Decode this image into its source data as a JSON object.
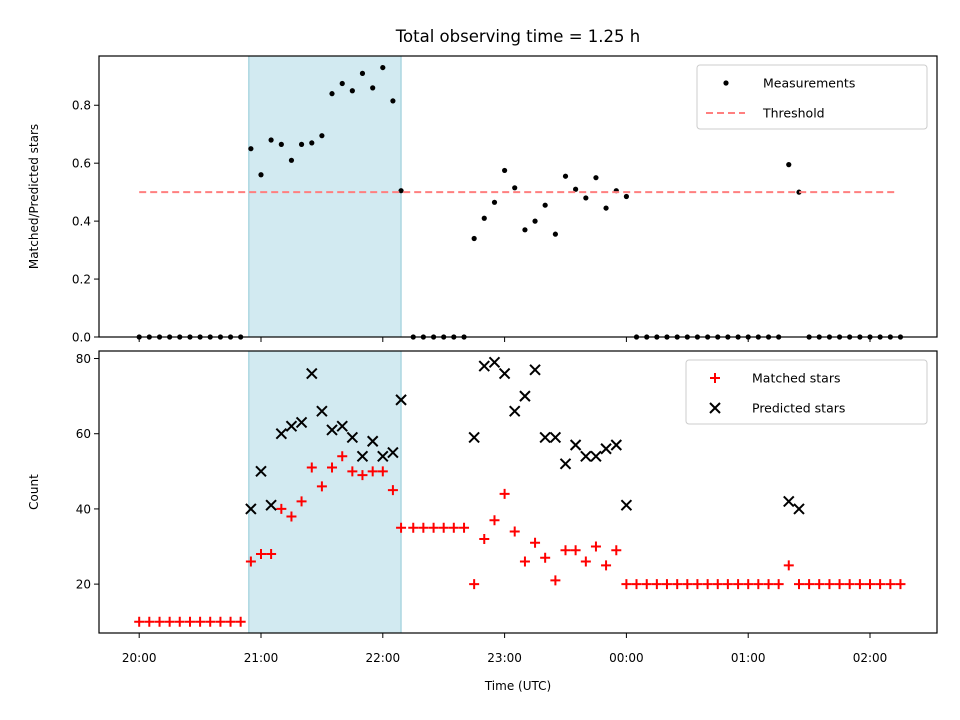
{
  "chart_data": {
    "type": "scatter",
    "title": "Total observing time = 1.25 h",
    "xlabel": "Time (UTC)",
    "x_ticks": [
      "20:00",
      "21:00",
      "22:00",
      "23:00",
      "00:00",
      "01:00",
      "02:00"
    ],
    "shaded_interval": {
      "start_hour": 20.9,
      "end_hour": 22.15,
      "color": "#add8e6"
    },
    "panels": [
      {
        "ylabel": "Matched/Predicted stars",
        "ylim": [
          0,
          0.97
        ],
        "yticks": [
          "0.0",
          "0.2",
          "0.4",
          "0.6",
          "0.8"
        ],
        "legend_position": "upper right",
        "series": [
          {
            "name": "Measurements",
            "marker": "dot",
            "color": "#000000",
            "points": [
              [
                20.0,
                0
              ],
              [
                20.083,
                0
              ],
              [
                20.167,
                0
              ],
              [
                20.25,
                0
              ],
              [
                20.333,
                0
              ],
              [
                20.417,
                0
              ],
              [
                20.5,
                0
              ],
              [
                20.583,
                0
              ],
              [
                20.667,
                0
              ],
              [
                20.75,
                0
              ],
              [
                20.833,
                0
              ],
              [
                20.917,
                0.65
              ],
              [
                21.0,
                0.56
              ],
              [
                21.083,
                0.68
              ],
              [
                21.167,
                0.665
              ],
              [
                21.25,
                0.61
              ],
              [
                21.333,
                0.665
              ],
              [
                21.417,
                0.67
              ],
              [
                21.5,
                0.695
              ],
              [
                21.583,
                0.84
              ],
              [
                21.667,
                0.875
              ],
              [
                21.75,
                0.85
              ],
              [
                21.833,
                0.91
              ],
              [
                21.917,
                0.86
              ],
              [
                22.0,
                0.93
              ],
              [
                22.083,
                0.815
              ],
              [
                22.15,
                0.505
              ],
              [
                22.25,
                0
              ],
              [
                22.333,
                0
              ],
              [
                22.417,
                0
              ],
              [
                22.5,
                0
              ],
              [
                22.583,
                0
              ],
              [
                22.667,
                0
              ],
              [
                22.75,
                0.34
              ],
              [
                22.833,
                0.41
              ],
              [
                22.917,
                0.465
              ],
              [
                23.0,
                0.575
              ],
              [
                23.083,
                0.515
              ],
              [
                23.167,
                0.37
              ],
              [
                23.25,
                0.4
              ],
              [
                23.333,
                0.455
              ],
              [
                23.417,
                0.355
              ],
              [
                23.5,
                0.555
              ],
              [
                23.583,
                0.51
              ],
              [
                23.667,
                0.48
              ],
              [
                23.75,
                0.55
              ],
              [
                23.833,
                0.445
              ],
              [
                23.917,
                0.505
              ],
              [
                24.0,
                0.485
              ],
              [
                24.083,
                0
              ],
              [
                24.167,
                0
              ],
              [
                24.25,
                0
              ],
              [
                24.333,
                0
              ],
              [
                24.417,
                0
              ],
              [
                24.5,
                0
              ],
              [
                24.583,
                0
              ],
              [
                24.667,
                0
              ],
              [
                24.75,
                0
              ],
              [
                24.833,
                0
              ],
              [
                24.917,
                0
              ],
              [
                25.0,
                0
              ],
              [
                25.083,
                0
              ],
              [
                25.167,
                0
              ],
              [
                25.25,
                0
              ],
              [
                25.333,
                0.595
              ],
              [
                25.417,
                0.5
              ],
              [
                25.5,
                0
              ],
              [
                25.583,
                0
              ],
              [
                25.667,
                0
              ],
              [
                25.75,
                0
              ],
              [
                25.833,
                0
              ],
              [
                25.917,
                0
              ],
              [
                26.0,
                0
              ],
              [
                26.083,
                0
              ],
              [
                26.167,
                0
              ],
              [
                26.25,
                0
              ]
            ]
          },
          {
            "name": "Threshold",
            "line": "dashed",
            "color": "#ff7f7f",
            "points": [
              [
                20.0,
                0.5
              ],
              [
                26.2,
                0.5
              ]
            ]
          }
        ]
      },
      {
        "ylabel": "Count",
        "ylim": [
          7,
          82
        ],
        "yticks": [
          "20",
          "40",
          "60",
          "80"
        ],
        "legend_position": "upper right",
        "series": [
          {
            "name": "Matched stars",
            "marker": "plus",
            "color": "#ff0000",
            "points": [
              [
                20.0,
                10
              ],
              [
                20.083,
                10
              ],
              [
                20.167,
                10
              ],
              [
                20.25,
                10
              ],
              [
                20.333,
                10
              ],
              [
                20.417,
                10
              ],
              [
                20.5,
                10
              ],
              [
                20.583,
                10
              ],
              [
                20.667,
                10
              ],
              [
                20.75,
                10
              ],
              [
                20.833,
                10
              ],
              [
                20.917,
                26
              ],
              [
                21.0,
                28
              ],
              [
                21.083,
                28
              ],
              [
                21.167,
                40
              ],
              [
                21.25,
                38
              ],
              [
                21.333,
                42
              ],
              [
                21.417,
                51
              ],
              [
                21.5,
                46
              ],
              [
                21.583,
                51
              ],
              [
                21.667,
                54
              ],
              [
                21.75,
                50
              ],
              [
                21.833,
                49
              ],
              [
                21.917,
                50
              ],
              [
                22.0,
                50
              ],
              [
                22.083,
                45
              ],
              [
                22.15,
                35
              ],
              [
                22.25,
                35
              ],
              [
                22.333,
                35
              ],
              [
                22.417,
                35
              ],
              [
                22.5,
                35
              ],
              [
                22.583,
                35
              ],
              [
                22.667,
                35
              ],
              [
                22.75,
                20
              ],
              [
                22.833,
                32
              ],
              [
                22.917,
                37
              ],
              [
                23.0,
                44
              ],
              [
                23.083,
                34
              ],
              [
                23.167,
                26
              ],
              [
                23.25,
                31
              ],
              [
                23.333,
                27
              ],
              [
                23.417,
                21
              ],
              [
                23.5,
                29
              ],
              [
                23.583,
                29
              ],
              [
                23.667,
                26
              ],
              [
                23.75,
                30
              ],
              [
                23.833,
                25
              ],
              [
                23.917,
                29
              ],
              [
                24.0,
                20
              ],
              [
                24.083,
                20
              ],
              [
                24.167,
                20
              ],
              [
                24.25,
                20
              ],
              [
                24.333,
                20
              ],
              [
                24.417,
                20
              ],
              [
                24.5,
                20
              ],
              [
                24.583,
                20
              ],
              [
                24.667,
                20
              ],
              [
                24.75,
                20
              ],
              [
                24.833,
                20
              ],
              [
                24.917,
                20
              ],
              [
                25.0,
                20
              ],
              [
                25.083,
                20
              ],
              [
                25.167,
                20
              ],
              [
                25.25,
                20
              ],
              [
                25.333,
                25
              ],
              [
                25.417,
                20
              ],
              [
                25.5,
                20
              ],
              [
                25.583,
                20
              ],
              [
                25.667,
                20
              ],
              [
                25.75,
                20
              ],
              [
                25.833,
                20
              ],
              [
                25.917,
                20
              ],
              [
                26.0,
                20
              ],
              [
                26.083,
                20
              ],
              [
                26.167,
                20
              ],
              [
                26.25,
                20
              ]
            ]
          },
          {
            "name": "Predicted stars",
            "marker": "x",
            "color": "#000000",
            "points": [
              [
                20.917,
                40
              ],
              [
                21.0,
                50
              ],
              [
                21.083,
                41
              ],
              [
                21.167,
                60
              ],
              [
                21.25,
                62
              ],
              [
                21.333,
                63
              ],
              [
                21.417,
                76
              ],
              [
                21.5,
                66
              ],
              [
                21.583,
                61
              ],
              [
                21.667,
                62
              ],
              [
                21.75,
                59
              ],
              [
                21.833,
                54
              ],
              [
                21.917,
                58
              ],
              [
                22.0,
                54
              ],
              [
                22.083,
                55
              ],
              [
                22.15,
                69
              ],
              [
                22.75,
                59
              ],
              [
                22.833,
                78
              ],
              [
                22.917,
                79
              ],
              [
                23.0,
                76
              ],
              [
                23.083,
                66
              ],
              [
                23.167,
                70
              ],
              [
                23.25,
                77
              ],
              [
                23.333,
                59
              ],
              [
                23.417,
                59
              ],
              [
                23.5,
                52
              ],
              [
                23.583,
                57
              ],
              [
                23.667,
                54
              ],
              [
                23.75,
                54
              ],
              [
                23.833,
                56
              ],
              [
                23.917,
                57
              ],
              [
                24.0,
                41
              ],
              [
                25.333,
                42
              ],
              [
                25.417,
                40
              ]
            ]
          }
        ]
      }
    ]
  }
}
